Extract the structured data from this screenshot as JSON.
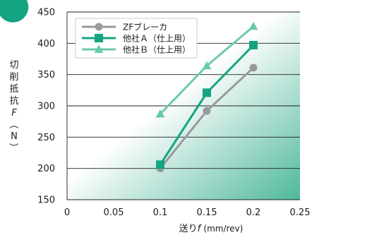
{
  "chart_data": {
    "type": "line",
    "xlabel": "送り",
    "xlabel_var": "f",
    "xlabel_unit": "(mm/rev)",
    "ylabel_chars": [
      "切",
      "削",
      "抵",
      "抗",
      "F",
      "（",
      "N",
      "）"
    ],
    "xlim": [
      0,
      0.25
    ],
    "ylim": [
      150,
      450
    ],
    "x_ticks": [
      "0",
      "0.05",
      "0.1",
      "0.15",
      "0.2",
      "0.25"
    ],
    "y_ticks": [
      "150",
      "200",
      "250",
      "300",
      "350",
      "400",
      "450"
    ],
    "grid": "horizontal",
    "legend_position": "top-left",
    "x": [
      0.1,
      0.15,
      0.2
    ],
    "series": [
      {
        "name": "ZFブレーカ",
        "values": [
          200,
          292,
          361
        ],
        "color": "#9a9a9a",
        "marker": "circle"
      },
      {
        "name": "他社Ａ（仕上用）",
        "values": [
          206,
          321,
          397
        ],
        "color": "#14a482",
        "marker": "square"
      },
      {
        "name": "他社Ｂ（仕上用）",
        "values": [
          287,
          364,
          427
        ],
        "color": "#6cc9ad",
        "marker": "triangle"
      }
    ],
    "colors": {
      "background_light": "#ffffff",
      "background_dark": "#4fb89c",
      "grid": "#222222"
    }
  }
}
